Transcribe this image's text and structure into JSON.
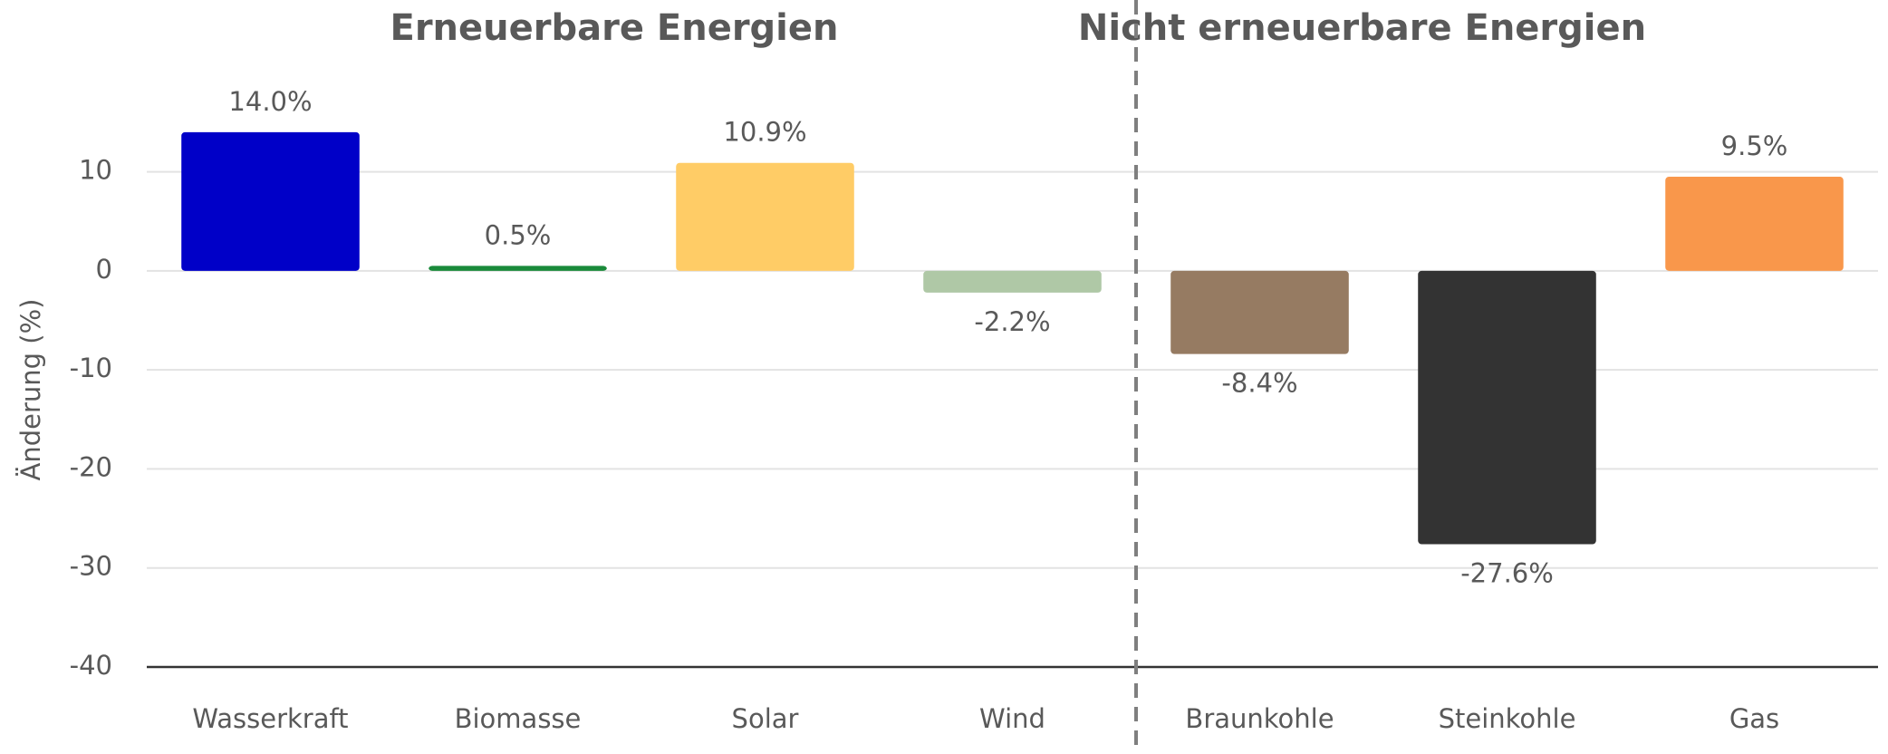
{
  "chart_data": {
    "type": "bar",
    "groups": [
      {
        "title": "Erneuerbare Energien"
      },
      {
        "title": "Nicht erneuerbare Energien"
      }
    ],
    "categories": [
      "Wasserkraft",
      "Biomasse",
      "Solar",
      "Wind",
      "Braunkohle",
      "Steinkohle",
      "Gas"
    ],
    "values": [
      14.0,
      0.5,
      10.9,
      -2.2,
      -8.4,
      -27.6,
      9.5
    ],
    "value_labels": [
      "14.0%",
      "0.5%",
      "10.9%",
      "-2.2%",
      "-8.4%",
      "-27.6%",
      "9.5%"
    ],
    "colors": [
      "#0000c8",
      "#1a8a3a",
      "#ffcc66",
      "#afc8a6",
      "#967b62",
      "#333333",
      "#f9974b"
    ],
    "y_label": "Änderung (%)",
    "ylim": [
      -40,
      16
    ],
    "yticks": [
      -40,
      -30,
      -20,
      -10,
      0,
      10
    ],
    "grid": true
  }
}
